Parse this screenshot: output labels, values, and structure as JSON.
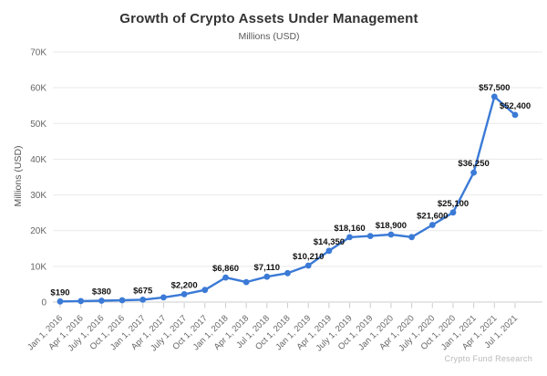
{
  "chart_data": {
    "type": "line",
    "title": "Growth of Crypto Assets Under Management",
    "subtitle": "Millions (USD)",
    "ylabel": "Millions (USD)",
    "xlabel": "",
    "watermark": "Crypto Fund Research",
    "grid": true,
    "legend": "none",
    "ylim": [
      0,
      70000
    ],
    "yticks": [
      {
        "value": 0,
        "label": "0"
      },
      {
        "value": 10000,
        "label": "10K"
      },
      {
        "value": 20000,
        "label": "20K"
      },
      {
        "value": 30000,
        "label": "30K"
      },
      {
        "value": 40000,
        "label": "40K"
      },
      {
        "value": 50000,
        "label": "50K"
      },
      {
        "value": 60000,
        "label": "60K"
      },
      {
        "value": 70000,
        "label": "70K"
      }
    ],
    "categories": [
      "Jan 1, 2016",
      "Apr 1, 2016",
      "July 1, 2016",
      "Oct 1, 2016",
      "Jan 1, 2017",
      "Apr 1, 2017",
      "July 1, 2017",
      "Oct 1, 2017",
      "Jan 1, 2018",
      "Apr 1, 2018",
      "Jul 1, 2018",
      "Oct 1, 2018",
      "Jan 1, 2019",
      "Apr 1, 2019",
      "July 1, 2019",
      "Oct 1, 2019",
      "Jan 1, 2020",
      "Apr 1, 2020",
      "July 1, 2020",
      "Oct 1, 2020",
      "Jan 1, 2021",
      "Apr 1, 2021",
      "Jul 1, 2021"
    ],
    "values": [
      190,
      280,
      380,
      520,
      675,
      1300,
      2200,
      3400,
      6860,
      5600,
      7110,
      8100,
      10210,
      14350,
      18160,
      18500,
      18900,
      18200,
      21600,
      25100,
      36250,
      57500,
      52400
    ],
    "point_labels": [
      "$190",
      "",
      "$380",
      "",
      "$675",
      "",
      "$2,200",
      "",
      "$6,860",
      "",
      "$7,110",
      "",
      "$10,210",
      "$14,350",
      "$18,160",
      "",
      "$18,900",
      "",
      "$21,600",
      "$25,100",
      "$36,250",
      "$57,500",
      "$52,400"
    ],
    "colors": {
      "line": "#3b7ad6",
      "marker": "#3b7ad6",
      "point_label": "#111111",
      "axis_text": "#666666",
      "grid_line": "#e9e9e9",
      "axis_line": "#cccccc"
    }
  }
}
